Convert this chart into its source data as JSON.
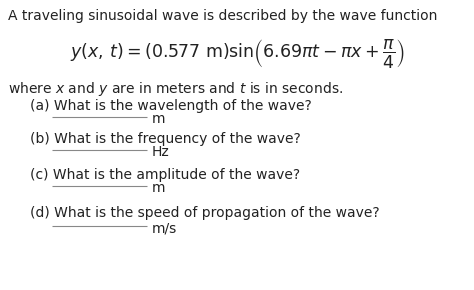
{
  "bg_color": "#ffffff",
  "text_color": "#222222",
  "title": "A traveling sinusoidal wave is described by the wave function",
  "equation": "y(x,\\,t) = (0.577\\ \\mathrm{m})\\sin\\!\\left(6.69\\pi t - \\pi x + \\dfrac{\\pi}{4}\\right)",
  "where_text": "where $x$ and $y$ are in meters and $t$ is in seconds.",
  "q_a": "(a) What is the wavelength of the wave?",
  "unit_a": "m",
  "q_b": "(b) What is the frequency of the wave?",
  "unit_b": "Hz",
  "q_c": "(c) What is the amplitude of the wave?",
  "unit_c": "m",
  "q_d": "(d) What is the speed of propagation of the wave?",
  "unit_d": "m/s",
  "font_size": 10.0,
  "eq_font_size": 12.5
}
